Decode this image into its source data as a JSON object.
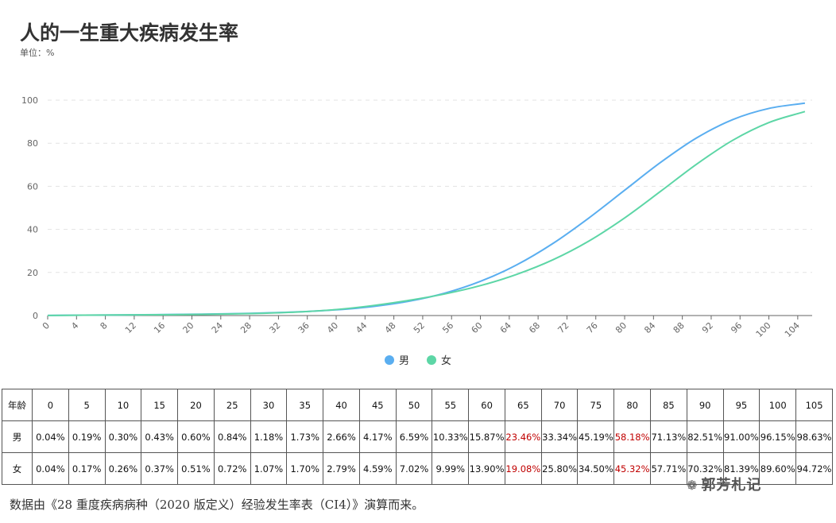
{
  "title": "人的一生重大疾病发生率",
  "unit_label": "单位：%",
  "chart_data": {
    "type": "line",
    "x_ticks": [
      0,
      4,
      8,
      12,
      16,
      20,
      24,
      28,
      32,
      36,
      40,
      44,
      48,
      52,
      56,
      60,
      64,
      68,
      72,
      76,
      80,
      84,
      88,
      92,
      96,
      100,
      104
    ],
    "y_ticks": [
      0,
      20,
      40,
      60,
      80,
      100
    ],
    "xlim": [
      0,
      106
    ],
    "ylim": [
      0,
      100
    ],
    "grid": "horizontal dashed",
    "legend_position": "bottom-center",
    "x": [
      0,
      5,
      10,
      15,
      20,
      25,
      30,
      35,
      40,
      45,
      50,
      55,
      60,
      65,
      70,
      75,
      80,
      85,
      90,
      95,
      100,
      105
    ],
    "series": [
      {
        "name": "男",
        "color": "#5aaef0",
        "values": [
          0.04,
          0.19,
          0.3,
          0.43,
          0.6,
          0.84,
          1.18,
          1.73,
          2.66,
          4.17,
          6.59,
          10.33,
          15.87,
          23.46,
          33.34,
          45.19,
          58.18,
          71.13,
          82.51,
          91.0,
          96.15,
          98.63
        ]
      },
      {
        "name": "女",
        "color": "#5dd6a6",
        "values": [
          0.04,
          0.17,
          0.26,
          0.37,
          0.51,
          0.72,
          1.07,
          1.7,
          2.79,
          4.59,
          7.02,
          9.99,
          13.9,
          19.08,
          25.8,
          34.5,
          45.32,
          57.71,
          70.32,
          81.39,
          89.6,
          94.72
        ]
      }
    ]
  },
  "table": {
    "header_label": "年龄",
    "ages": [
      "0",
      "5",
      "10",
      "15",
      "20",
      "25",
      "30",
      "35",
      "40",
      "45",
      "50",
      "55",
      "60",
      "65",
      "70",
      "75",
      "80",
      "85",
      "90",
      "95",
      "100",
      "105"
    ],
    "rows": [
      {
        "label": "男",
        "values": [
          "0.04%",
          "0.19%",
          "0.30%",
          "0.43%",
          "0.60%",
          "0.84%",
          "1.18%",
          "1.73%",
          "2.66%",
          "4.17%",
          "6.59%",
          "10.33%",
          "15.87%",
          "23.46%",
          "33.34%",
          "45.19%",
          "58.18%",
          "71.13%",
          "82.51%",
          "91.00%",
          "96.15%",
          "98.63%"
        ]
      },
      {
        "label": "女",
        "values": [
          "0.04%",
          "0.17%",
          "0.26%",
          "0.37%",
          "0.51%",
          "0.72%",
          "1.07%",
          "1.70%",
          "2.79%",
          "4.59%",
          "7.02%",
          "9.99%",
          "13.90%",
          "19.08%",
          "25.80%",
          "34.50%",
          "45.32%",
          "57.71%",
          "70.32%",
          "81.39%",
          "89.60%",
          "94.72%"
        ]
      }
    ],
    "highlight_color": "#c00000",
    "highlight_ages": [
      "65",
      "80"
    ]
  },
  "footer_text": "数据由《28 重度疾病病种（2020 版定义）经验发生率表（CI4）》演算而来。",
  "watermark": {
    "icon": "wechat-icon",
    "text": "郭芳札记"
  }
}
